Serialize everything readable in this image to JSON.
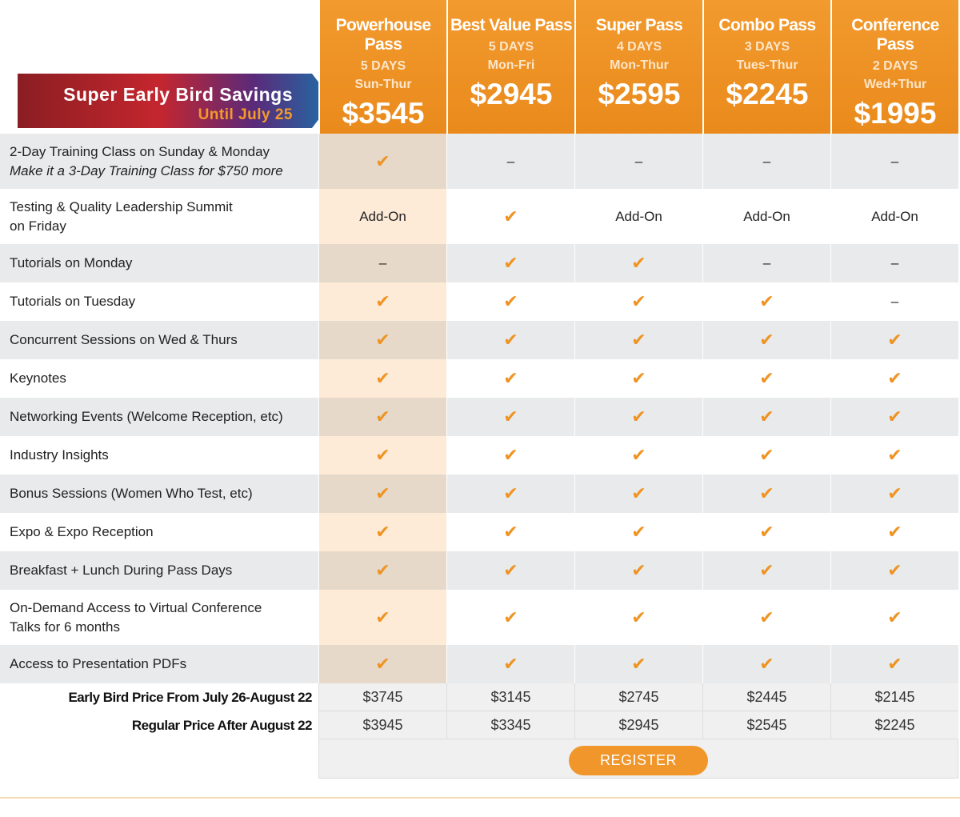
{
  "banner": {
    "title": "Super Early Bird Savings",
    "subtitle": "Until July 25"
  },
  "plans": [
    {
      "name": "Powerhouse Pass",
      "days": "5 DAYS",
      "range": "Sun-Thur",
      "price": "$3545"
    },
    {
      "name": "Best Value Pass",
      "days": "5 DAYS",
      "range": "Mon-Fri",
      "price": "$2945"
    },
    {
      "name": "Super Pass",
      "days": "4 DAYS",
      "range": "Mon-Thur",
      "price": "$2595"
    },
    {
      "name": "Combo Pass",
      "days": "3 DAYS",
      "range": "Tues-Thur",
      "price": "$2245"
    },
    {
      "name": "Conference Pass",
      "days": "2 DAYS",
      "range": "Wed+Thur",
      "price": "$1995"
    }
  ],
  "features": [
    {
      "label": [
        "2-Day Training Class on Sunday & Monday"
      ],
      "note": "Make it a 3-Day Training Class for $750 more",
      "cells": [
        "✔",
        "–",
        "–",
        "–",
        "–"
      ]
    },
    {
      "label": [
        "Testing & Quality Leadership Summit",
        "on Friday"
      ],
      "cells": [
        "Add-On",
        "✔",
        "Add-On",
        "Add-On",
        "Add-On"
      ]
    },
    {
      "label": [
        "Tutorials on Monday"
      ],
      "cells": [
        "–",
        "✔",
        "✔",
        "–",
        "–"
      ]
    },
    {
      "label": [
        "Tutorials on Tuesday"
      ],
      "cells": [
        "✔",
        "✔",
        "✔",
        "✔",
        "–"
      ]
    },
    {
      "label": [
        "Concurrent Sessions on Wed & Thurs"
      ],
      "cells": [
        "✔",
        "✔",
        "✔",
        "✔",
        "✔"
      ]
    },
    {
      "label": [
        "Keynotes"
      ],
      "cells": [
        "✔",
        "✔",
        "✔",
        "✔",
        "✔"
      ]
    },
    {
      "label": [
        "Networking Events (Welcome Reception, etc)"
      ],
      "cells": [
        "✔",
        "✔",
        "✔",
        "✔",
        "✔"
      ]
    },
    {
      "label": [
        "Industry Insights"
      ],
      "cells": [
        "✔",
        "✔",
        "✔",
        "✔",
        "✔"
      ]
    },
    {
      "label": [
        "Bonus Sessions (Women Who Test, etc)"
      ],
      "cells": [
        "✔",
        "✔",
        "✔",
        "✔",
        "✔"
      ]
    },
    {
      "label": [
        "Expo & Expo Reception"
      ],
      "cells": [
        "✔",
        "✔",
        "✔",
        "✔",
        "✔"
      ]
    },
    {
      "label": [
        "Breakfast + Lunch During Pass Days"
      ],
      "cells": [
        "✔",
        "✔",
        "✔",
        "✔",
        "✔"
      ]
    },
    {
      "label": [
        "On-Demand Access to Virtual Conference",
        "Talks for 6 months"
      ],
      "cells": [
        "✔",
        "✔",
        "✔",
        "✔",
        "✔"
      ]
    },
    {
      "label": [
        "Access to Presentation PDFs"
      ],
      "cells": [
        "✔",
        "✔",
        "✔",
        "✔",
        "✔"
      ]
    }
  ],
  "price_rows": [
    {
      "label": "Early Bird Price From July 26-August 22",
      "values": [
        "$3745",
        "$3145",
        "$2745",
        "$2445",
        "$2145"
      ]
    },
    {
      "label": "Regular Price After August 22",
      "values": [
        "$3945",
        "$3345",
        "$2945",
        "$2545",
        "$2245"
      ]
    }
  ],
  "register": "REGISTER"
}
